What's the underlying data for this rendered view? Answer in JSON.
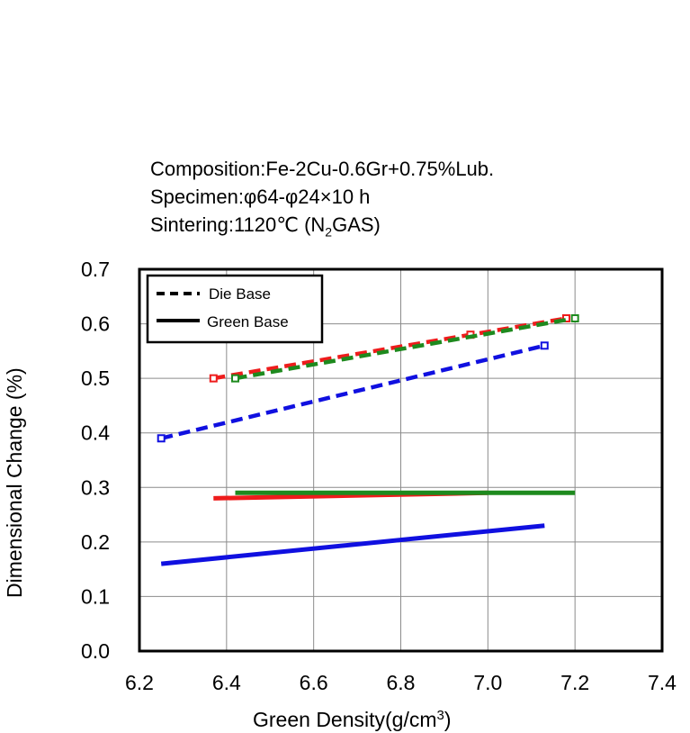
{
  "chart_data": {
    "type": "line",
    "caption": {
      "composition": "Composition:Fe-2Cu-0.6Gr+0.75%Lub.",
      "specimen": "Specimen:φ64-φ24×10 h",
      "sintering_prefix": "Sintering:1120℃ (N",
      "sintering_sub": "2",
      "sintering_suffix": "GAS)"
    },
    "xlabel": "Green Density(g/cm",
    "xlabel_sup": "3",
    "xlabel_end": ")",
    "ylabel": "Dimensional  Change (%)",
    "xlim": [
      6.2,
      7.4
    ],
    "ylim": [
      0.0,
      0.7
    ],
    "x_ticks": [
      "6.2",
      "6.4",
      "6.6",
      "6.8",
      "7.0",
      "7.2",
      "7.4"
    ],
    "y_ticks": [
      "0.0",
      "0.1",
      "0.2",
      "0.3",
      "0.4",
      "0.5",
      "0.6",
      "0.7"
    ],
    "grid": true,
    "legend": {
      "position": "top-left",
      "entries": [
        {
          "label": "Die Base",
          "style": "dashed"
        },
        {
          "label": "Green Base",
          "style": "solid"
        }
      ]
    },
    "series": [
      {
        "name": "Die Base (red)",
        "color": "#ee1c1c",
        "style": "dashed",
        "x": [
          6.37,
          6.96,
          7.18
        ],
        "y": [
          0.5,
          0.58,
          0.61
        ],
        "markers": true
      },
      {
        "name": "Die Base (green)",
        "color": "#1e8a1e",
        "style": "dashed",
        "x": [
          6.42,
          7.2
        ],
        "y": [
          0.5,
          0.61
        ],
        "markers": true
      },
      {
        "name": "Die Base (blue)",
        "color": "#1010e0",
        "style": "dashed",
        "x": [
          6.25,
          7.13
        ],
        "y": [
          0.39,
          0.56
        ],
        "markers": true
      },
      {
        "name": "Green Base (red)",
        "color": "#ee1c1c",
        "style": "solid",
        "x": [
          6.37,
          7.0
        ],
        "y": [
          0.28,
          0.29
        ],
        "markers": false
      },
      {
        "name": "Green Base (green)",
        "color": "#1e8a1e",
        "style": "solid",
        "x": [
          6.42,
          7.2
        ],
        "y": [
          0.29,
          0.29
        ],
        "markers": false
      },
      {
        "name": "Green Base (blue)",
        "color": "#1010e0",
        "style": "solid",
        "x": [
          6.25,
          7.13
        ],
        "y": [
          0.16,
          0.23
        ],
        "markers": false
      }
    ]
  }
}
